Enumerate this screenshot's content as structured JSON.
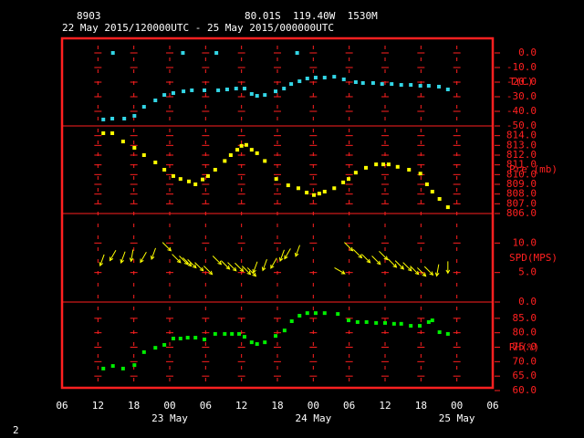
{
  "header": {
    "station": "8903",
    "location": "80.01S  119.40W  1530M",
    "period": "22 May 2015/120000UTC - 25 May 2015/000000UTC",
    "page": "2"
  },
  "x_axis": {
    "xlim": [
      6,
      78
    ],
    "xticks": [
      {
        "value": 6,
        "label": "06"
      },
      {
        "value": 12,
        "label": "12"
      },
      {
        "value": 18,
        "label": "18"
      },
      {
        "value": 24,
        "label": "00"
      },
      {
        "value": 30,
        "label": "06"
      },
      {
        "value": 36,
        "label": "12"
      },
      {
        "value": 42,
        "label": "18"
      },
      {
        "value": 48,
        "label": "00"
      },
      {
        "value": 54,
        "label": "06"
      },
      {
        "value": 60,
        "label": "12"
      },
      {
        "value": 66,
        "label": "18"
      },
      {
        "value": 72,
        "label": "00"
      },
      {
        "value": 78,
        "label": "06"
      }
    ],
    "date_labels": [
      {
        "value": 24,
        "label": "23 May"
      },
      {
        "value": 48,
        "label": "24 May"
      },
      {
        "value": 72,
        "label": "25 May"
      }
    ],
    "frame_color": "#ff2020"
  },
  "chart_data": [
    {
      "type": "scatter",
      "ylim": [
        -50,
        10
      ],
      "yticks": [
        {
          "value": 0,
          "label": "0.0"
        },
        {
          "value": -10,
          "label": "-10.0"
        },
        {
          "value": -20,
          "label": "-20.0"
        },
        {
          "value": -30,
          "label": "-30.0"
        },
        {
          "value": -40,
          "label": "-40.0"
        },
        {
          "value": -50,
          "label": "-50.0"
        }
      ],
      "series": [
        {
          "name": "T(C)",
          "color": "#33d6e6",
          "x": [
            12.9,
            14.4,
            14.5,
            16.4,
            18.1,
            19.7,
            21.6,
            23.1,
            24.6,
            26.2,
            26.3,
            27.7,
            29.8,
            31.8,
            32.1,
            33.6,
            35.1,
            36.5,
            37.7,
            38.6,
            39.9,
            41.7,
            43.1,
            44.3,
            45.3,
            45.7,
            47.0,
            48.4,
            49.9,
            51.5,
            53.1,
            55.1,
            56.3,
            58.0,
            59.5,
            61.1,
            62.7,
            64.3,
            65.9,
            67.3,
            69.0,
            70.5
          ],
          "values": [
            -45.6,
            -45,
            0,
            -45,
            -43.1,
            -36.9,
            -32.5,
            -28.8,
            -27.5,
            0,
            -26.3,
            -25.6,
            -25.6,
            0,
            -25.6,
            -25,
            -24.4,
            -24.4,
            -28.1,
            -29.4,
            -28.8,
            -26.3,
            -24.4,
            -21.3,
            0,
            -19.4,
            -17.5,
            -16.9,
            -16.9,
            -16.3,
            -18.1,
            -20,
            -20.6,
            -20.6,
            -21.3,
            -21.3,
            -21.9,
            -21.9,
            -22.5,
            -22.5,
            -23.1,
            -25
          ]
        }
      ]
    },
    {
      "type": "scatter",
      "ylim": [
        806,
        815
      ],
      "yticks": [
        {
          "value": 814,
          "label": "814.0"
        },
        {
          "value": 813,
          "label": "813.0"
        },
        {
          "value": 812,
          "label": "812.0"
        },
        {
          "value": 811,
          "label": "811.0"
        },
        {
          "value": 810,
          "label": "810.0"
        },
        {
          "value": 809,
          "label": "809.0"
        },
        {
          "value": 808,
          "label": "808.0"
        },
        {
          "value": 807,
          "label": "807.0"
        },
        {
          "value": 806,
          "label": "806.0"
        }
      ],
      "series": [
        {
          "name": "Pre (mb)",
          "color": "#ffff00",
          "x": [
            12.9,
            14.4,
            16.2,
            18.1,
            19.7,
            21.6,
            23.1,
            24.6,
            25.8,
            27.2,
            28.3,
            29.5,
            30.4,
            31.6,
            33.2,
            34.2,
            35.3,
            36.0,
            36.8,
            37.7,
            38.6,
            39.9,
            41.8,
            43.8,
            45.5,
            46.9,
            48.1,
            49.0,
            49.9,
            51.5,
            53.0,
            53.9,
            55.1,
            56.8,
            58.5,
            59.7,
            60.6,
            62.1,
            64.0,
            65.9,
            67.0,
            67.9,
            69.1,
            70.5
          ],
          "values": [
            814.25,
            814.25,
            813.4,
            812.75,
            812.0,
            811.25,
            810.5,
            809.85,
            809.55,
            809.3,
            809.0,
            809.5,
            809.85,
            810.5,
            811.4,
            812.0,
            812.55,
            812.95,
            813.05,
            812.55,
            812.2,
            811.4,
            809.55,
            808.9,
            808.6,
            808.15,
            807.9,
            808.05,
            808.25,
            808.6,
            809.2,
            809.55,
            810.2,
            810.7,
            811.05,
            811.05,
            811.05,
            810.8,
            810.5,
            810.1,
            809.0,
            808.25,
            807.5,
            806.65
          ]
        }
      ]
    },
    {
      "type": "wind",
      "ylim": [
        0,
        15
      ],
      "yticks": [
        {
          "value": 10,
          "label": "10.0"
        },
        {
          "value": 5,
          "label": "5.0"
        },
        {
          "value": 0,
          "label": "0.0"
        }
      ],
      "series": [
        {
          "name": "SPD(MPS)",
          "color": "#ffff00",
          "x": [
            12.7,
            14.5,
            16.2,
            17.7,
            19.6,
            21.3,
            23.5,
            25.1,
            26.3,
            26.9,
            27.7,
            28.9,
            30.4,
            31.9,
            33.3,
            34.4,
            35.6,
            36.8,
            37.7,
            38.3,
            39.9,
            41.4,
            42.8,
            43.7,
            45.4,
            52.4,
            53.9,
            55.4,
            56.8,
            58.5,
            59.7,
            61.2,
            62.4,
            63.7,
            64.9,
            66.1,
            67.3,
            68.8,
            70.5
          ],
          "values": [
            7.1,
            7.9,
            7.6,
            7.9,
            7.6,
            8.2,
            9.4,
            7.4,
            7.1,
            6.8,
            6.5,
            6.0,
            5.4,
            7.1,
            6.3,
            6.0,
            5.9,
            5.4,
            5.1,
            5.9,
            6.3,
            6.6,
            7.9,
            8.2,
            8.7,
            5.3,
            9.4,
            8.2,
            7.4,
            7.1,
            7.9,
            6.6,
            6.3,
            6.0,
            5.4,
            5.1,
            5.3,
            5.4,
            5.9
          ],
          "directions": [
            20,
            30,
            20,
            10,
            30,
            20,
            315,
            315,
            315,
            315,
            315,
            315,
            315,
            315,
            315,
            315,
            315,
            315,
            315,
            20,
            20,
            30,
            20,
            30,
            20,
            300,
            315,
            315,
            315,
            315,
            315,
            315,
            315,
            315,
            315,
            315,
            315,
            10,
            0
          ]
        }
      ]
    },
    {
      "type": "scatter",
      "ylim": [
        60,
        90
      ],
      "yticks": [
        {
          "value": 85,
          "label": "85.0"
        },
        {
          "value": 80,
          "label": "80.0"
        },
        {
          "value": 75,
          "label": "75.0"
        },
        {
          "value": 70,
          "label": "70.0"
        },
        {
          "value": 65,
          "label": "65.0"
        },
        {
          "value": 60,
          "label": "60.0"
        }
      ],
      "series": [
        {
          "name": "RH(%)",
          "color": "#00ee00",
          "x": [
            12.9,
            14.5,
            16.2,
            18.1,
            19.7,
            21.6,
            23.1,
            24.6,
            25.8,
            27.0,
            28.3,
            29.8,
            31.6,
            33.2,
            34.4,
            35.6,
            36.5,
            37.7,
            38.6,
            39.9,
            41.7,
            43.2,
            44.4,
            45.7,
            47.0,
            48.4,
            49.9,
            52.1,
            53.9,
            55.4,
            56.9,
            58.5,
            60.0,
            61.5,
            62.7,
            64.3,
            65.8,
            67.3,
            67.9,
            69.1,
            70.5
          ],
          "values": [
            67.6,
            68.5,
            67.6,
            68.8,
            73.3,
            74.8,
            75.8,
            78.0,
            78.0,
            78.3,
            78.3,
            77.7,
            79.6,
            79.6,
            79.6,
            79.6,
            78.6,
            76.7,
            76.1,
            76.7,
            78.9,
            80.8,
            84.0,
            85.9,
            86.8,
            86.8,
            86.8,
            86.5,
            84.3,
            83.7,
            83.7,
            83.4,
            83.4,
            83.1,
            83.1,
            82.4,
            82.4,
            83.7,
            84.3,
            80.2,
            79.6
          ]
        }
      ]
    }
  ]
}
